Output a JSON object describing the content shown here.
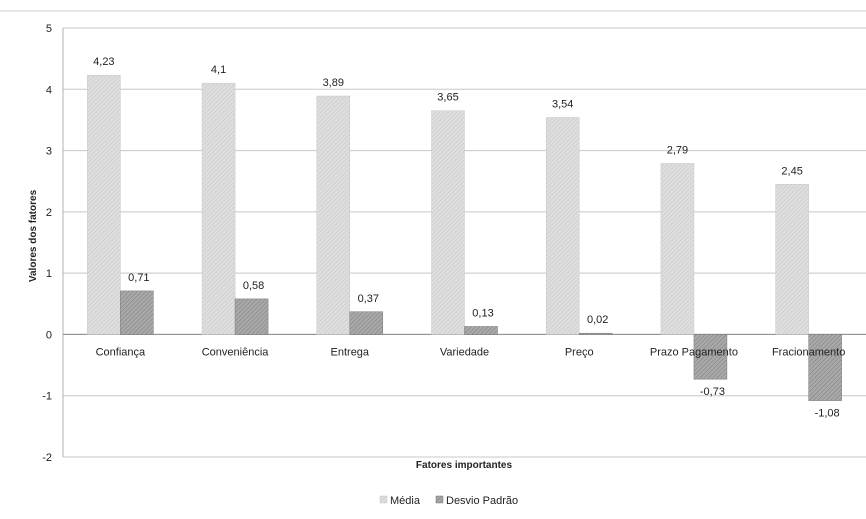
{
  "chart_data": {
    "type": "bar",
    "title": "",
    "xlabel": "Fatores importantes",
    "ylabel": "Valores dos fatores",
    "categories": [
      "Confiança",
      "Conveniência",
      "Entrega",
      "Variedade",
      "Preço",
      "Prazo Pagamento",
      "Fracionamento"
    ],
    "series": [
      {
        "name": "Média",
        "values": [
          4.23,
          4.1,
          3.89,
          3.65,
          3.54,
          2.79,
          2.45
        ],
        "labels": [
          "4,23",
          "4,1",
          "3,89",
          "3,65",
          "3,54",
          "2,79",
          "2,45"
        ],
        "color": "#d6d6d6"
      },
      {
        "name": "Desvio Padrão",
        "values": [
          0.71,
          0.58,
          0.37,
          0.13,
          0.02,
          -0.73,
          -1.08
        ],
        "labels": [
          "0,71",
          "0,58",
          "0,37",
          "0,13",
          "0,02",
          "-0,73",
          "-1,08"
        ],
        "color": "#9a9a9a"
      }
    ],
    "ylim": [
      -2,
      5
    ],
    "yticks": [
      "-2",
      "-1",
      "0",
      "1",
      "2",
      "3",
      "4",
      "5"
    ],
    "grid": true,
    "legend": "bottom"
  }
}
